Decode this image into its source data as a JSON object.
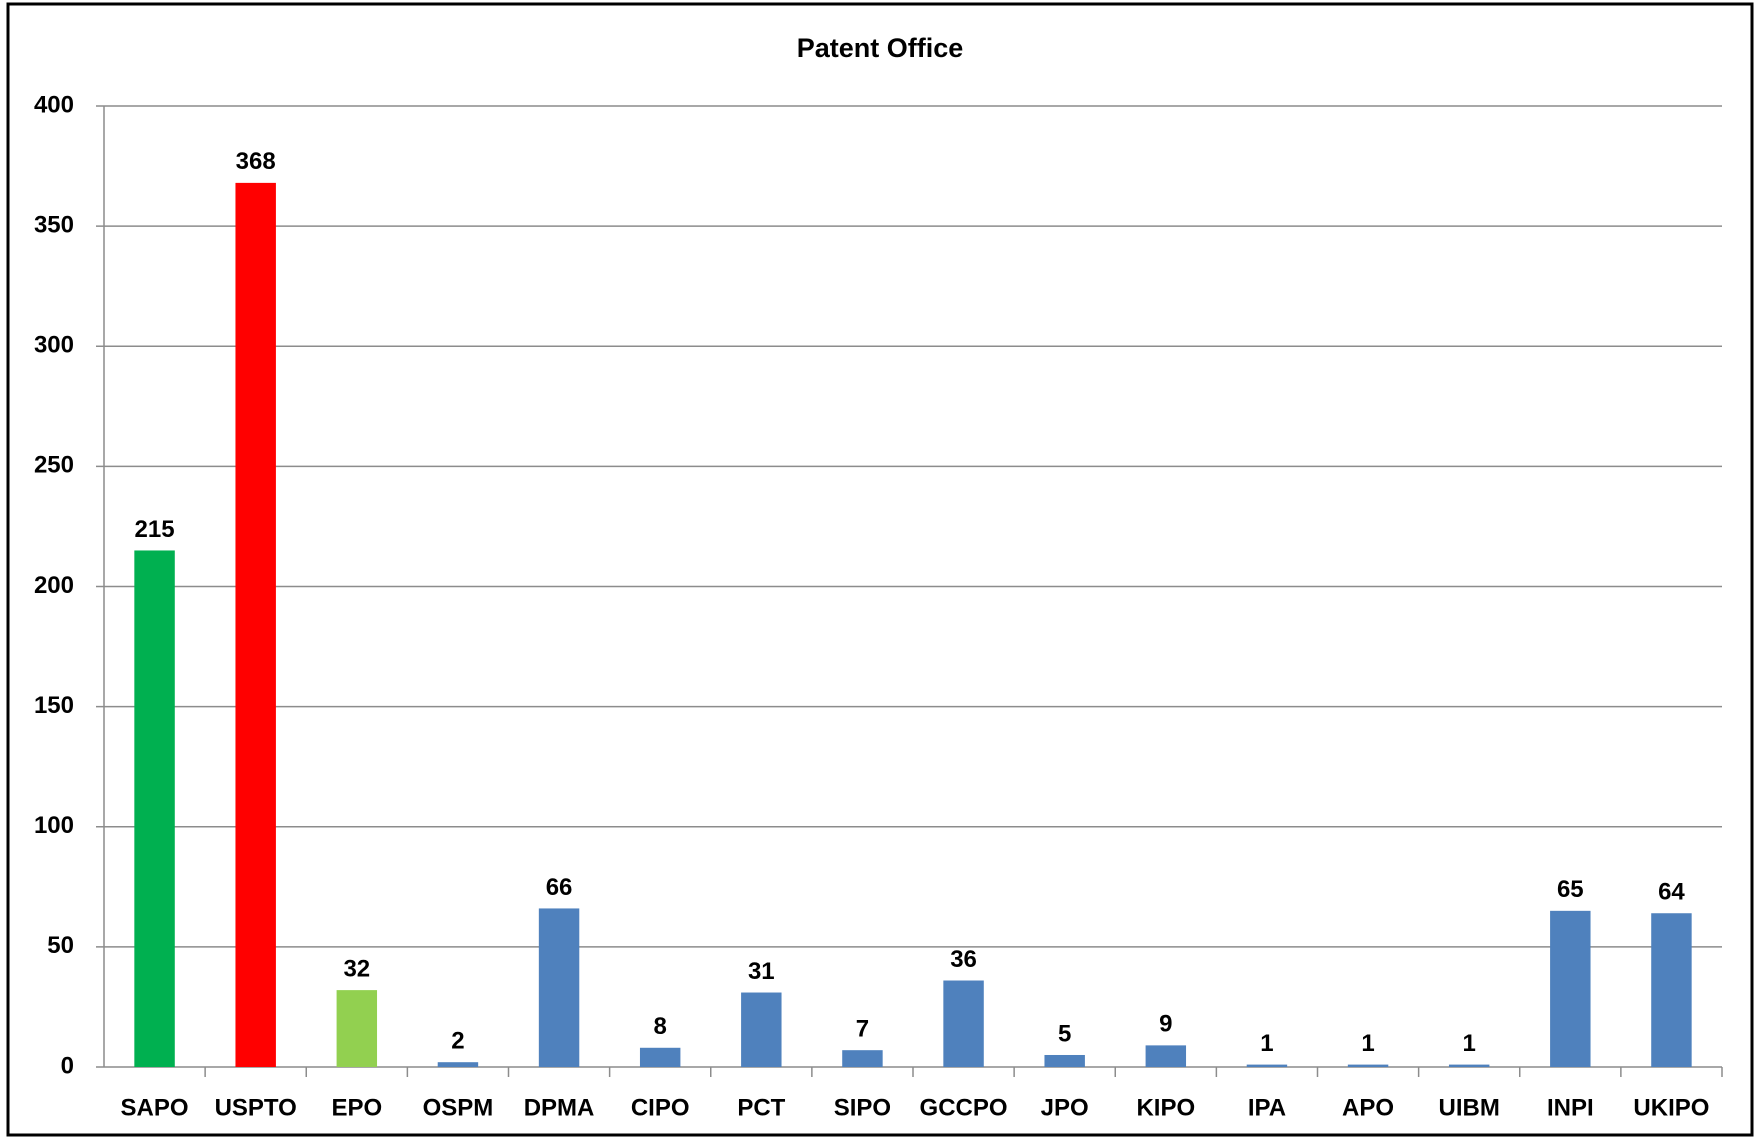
{
  "chart_data": {
    "type": "bar",
    "title": "Patent Office",
    "categories": [
      "SAPO",
      "USPTO",
      "EPO",
      "OSPM",
      "DPMA",
      "CIPO",
      "PCT",
      "SIPO",
      "GCCPO",
      "JPO",
      "KIPO",
      "IPA",
      "APO",
      "UIBM",
      "INPI",
      "UKIPO"
    ],
    "values": [
      215,
      368,
      32,
      2,
      66,
      8,
      31,
      7,
      36,
      5,
      9,
      1,
      1,
      1,
      65,
      64
    ],
    "colors": [
      "#00b050",
      "#ff0000",
      "#92d050",
      "#4f81bd",
      "#4f81bd",
      "#4f81bd",
      "#4f81bd",
      "#4f81bd",
      "#4f81bd",
      "#4f81bd",
      "#4f81bd",
      "#4f81bd",
      "#4f81bd",
      "#4f81bd",
      "#4f81bd",
      "#4f81bd"
    ],
    "ylim": [
      0,
      400
    ],
    "yticks": [
      0,
      50,
      100,
      150,
      200,
      250,
      300,
      350,
      400
    ],
    "grid": true
  }
}
